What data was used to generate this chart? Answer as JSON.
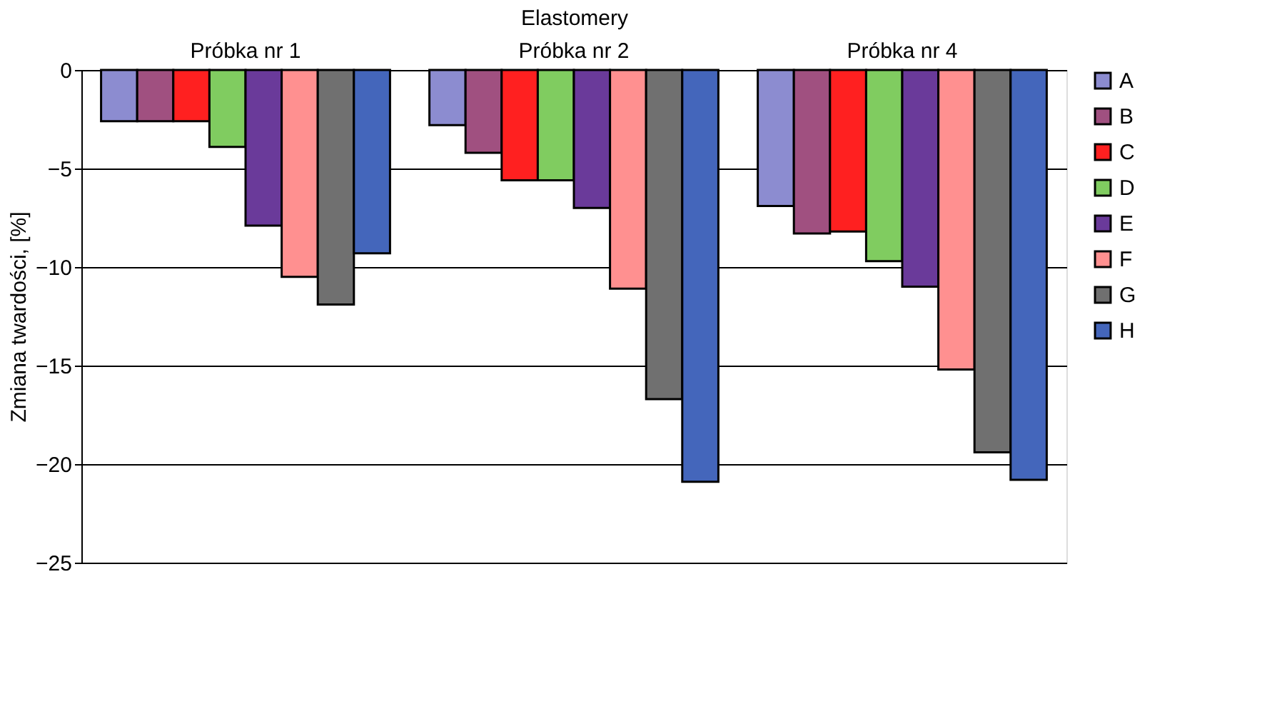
{
  "chart_data": {
    "type": "bar",
    "xlabel": "Elastomery",
    "ylabel": "Zmiana twardości,  [%]",
    "categories": [
      "Próbka nr 1",
      "Próbka nr 2",
      "Próbka nr 4"
    ],
    "series": [
      {
        "name": "A",
        "color": "#8c8cd0",
        "values": [
          -2.6,
          -2.8,
          -6.9
        ]
      },
      {
        "name": "B",
        "color": "#a05080",
        "values": [
          -2.6,
          -4.2,
          -8.3
        ]
      },
      {
        "name": "C",
        "color": "#ff2020",
        "values": [
          -2.6,
          -5.6,
          -8.2
        ]
      },
      {
        "name": "D",
        "color": "#80cc60",
        "values": [
          -3.9,
          -5.6,
          -9.7
        ]
      },
      {
        "name": "E",
        "color": "#6a3a9a",
        "values": [
          -7.9,
          -7.0,
          -11.0
        ]
      },
      {
        "name": "F",
        "color": "#ff9090",
        "values": [
          -10.5,
          -11.1,
          -15.2
        ]
      },
      {
        "name": "G",
        "color": "#707070",
        "values": [
          -11.9,
          -16.7,
          -19.4
        ]
      },
      {
        "name": "H",
        "color": "#4466bb",
        "values": [
          -9.3,
          -20.9,
          -20.8
        ]
      }
    ],
    "ylim": [
      -25,
      0
    ],
    "yticks": [
      0,
      -5,
      -10,
      -15,
      -20,
      -25
    ],
    "grid": "y",
    "legend": "right"
  }
}
